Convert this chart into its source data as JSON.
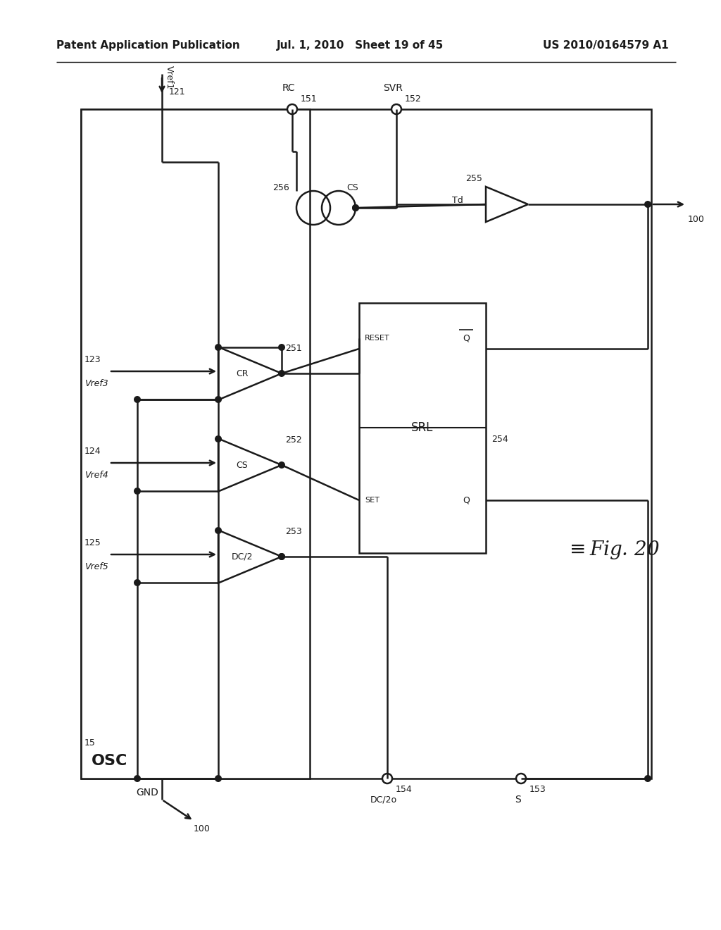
{
  "header_left": "Patent Application Publication",
  "header_mid": "Jul. 1, 2010   Sheet 19 of 45",
  "header_right": "US 2010/0164579 A1",
  "background": "#ffffff",
  "lc": "#1a1a1a"
}
